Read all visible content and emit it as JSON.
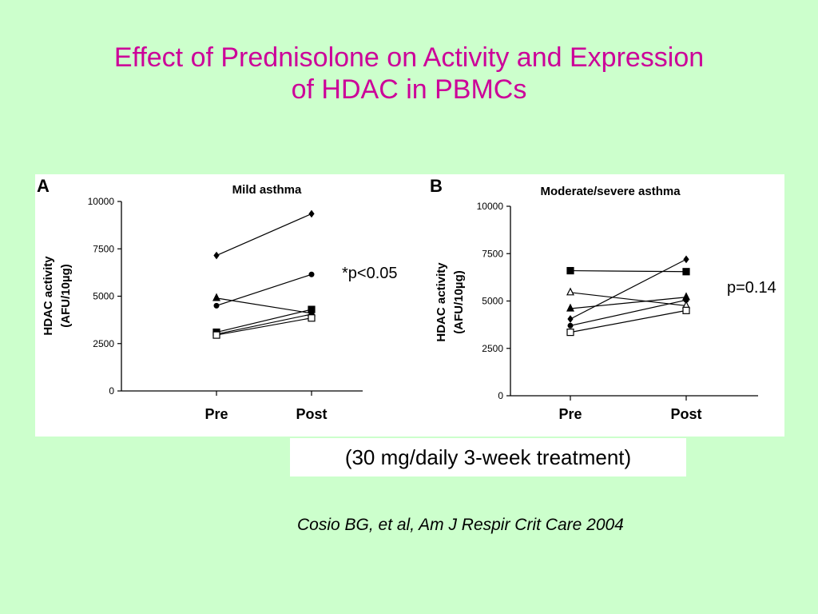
{
  "slide": {
    "title_line1": "Effect of Prednisolone on Activity and Expression",
    "title_line2": "of HDAC in PBMCs",
    "treatment_note": "(30 mg/daily 3-week treatment)",
    "citation": "Cosio BG, et al, Am J Respir Crit Care 2004"
  },
  "colors": {
    "background": "#ccffcc",
    "title": "#cc0099",
    "panel": "#ffffff",
    "lines": "#000000"
  },
  "chart_data": [
    {
      "type": "line",
      "panel_label": "A",
      "title": "Mild asthma",
      "ylabel_line1": "HDAC activity",
      "ylabel_line2": "(AFU/10µg)",
      "categories": [
        "Pre",
        "Post"
      ],
      "yticks": [
        "0",
        "2500",
        "5000",
        "7500",
        "10000"
      ],
      "ylim": [
        0,
        10000
      ],
      "annotation": "*p<0.05",
      "grid": false,
      "series": [
        {
          "values": [
            7150,
            9350
          ],
          "marker": "diamond"
        },
        {
          "values": [
            4500,
            6150
          ],
          "marker": "circle"
        },
        {
          "values": [
            4900,
            4100
          ],
          "marker": "triangle"
        },
        {
          "values": [
            3100,
            4300
          ],
          "marker": "square"
        },
        {
          "values": [
            3000,
            4050
          ],
          "marker": "circle"
        },
        {
          "values": [
            2950,
            3850
          ],
          "marker": "open-square"
        }
      ]
    },
    {
      "type": "line",
      "panel_label": "B",
      "title": "Moderate/severe asthma",
      "ylabel_line1": "HDAC activity",
      "ylabel_line2": "(AFU/10µg)",
      "categories": [
        "Pre",
        "Post"
      ],
      "yticks": [
        "0",
        "2500",
        "5000",
        "7500",
        "10000"
      ],
      "ylim": [
        0,
        10000
      ],
      "annotation": "p=0.14",
      "grid": false,
      "series": [
        {
          "values": [
            6600,
            6550
          ],
          "marker": "square"
        },
        {
          "values": [
            5450,
            4750
          ],
          "marker": "open-triangle"
        },
        {
          "values": [
            4600,
            5200
          ],
          "marker": "triangle"
        },
        {
          "values": [
            4050,
            7200
          ],
          "marker": "diamond"
        },
        {
          "values": [
            3700,
            5050
          ],
          "marker": "circle"
        },
        {
          "values": [
            3350,
            4500
          ],
          "marker": "open-square"
        }
      ]
    }
  ]
}
